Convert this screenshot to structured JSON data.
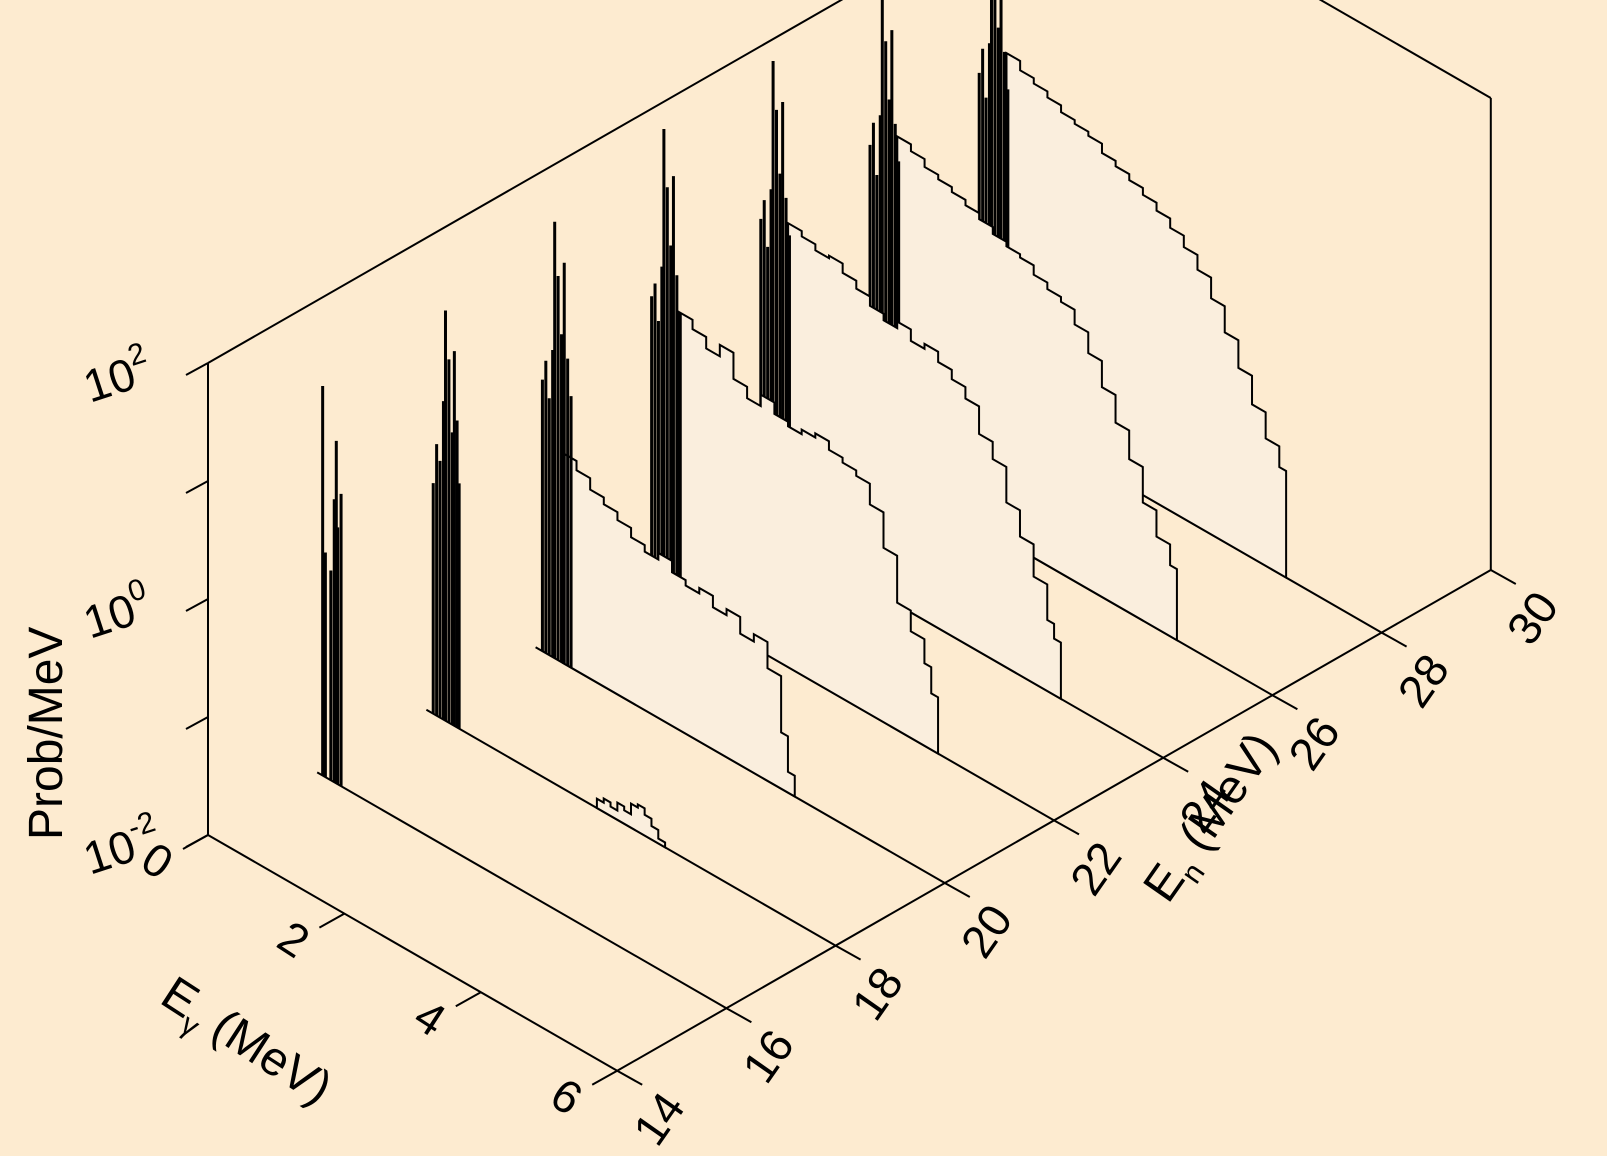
{
  "chart_data": {
    "type": "area",
    "projection": "3d-waterfall",
    "background_color": "#fdebd0",
    "slice_fill_color": "#faeedd",
    "line_color": "#000000",
    "axes": {
      "x": {
        "label_main": "E",
        "label_sub": "γ",
        "label_rest": " (MeV)",
        "range": [
          0,
          6
        ],
        "ticks": [
          "0",
          "2",
          "4",
          "6"
        ]
      },
      "y": {
        "label_main": "E",
        "label_sub": "n",
        "label_rest": " (MeV)",
        "range": [
          14,
          30
        ],
        "ticks": [
          "14",
          "16",
          "18",
          "20",
          "22",
          "24",
          "26",
          "28",
          "30"
        ]
      },
      "z": {
        "label": "Prob/MeV",
        "scale": "log",
        "range": [
          0.01,
          100
        ],
        "ticks": [
          {
            "base": "10",
            "exp": "-2"
          },
          {
            "base": "10",
            "exp": "0"
          },
          {
            "base": "10",
            "exp": "2"
          }
        ]
      }
    },
    "series": [
      {
        "en": 16,
        "lines": [
          [
            0.08,
            20
          ],
          [
            0.12,
            0.8
          ],
          [
            0.2,
            0.6
          ],
          [
            0.25,
            2.5
          ],
          [
            0.28,
            8
          ],
          [
            0.3,
            1.5
          ],
          [
            0.35,
            3
          ]
        ],
        "cont": []
      },
      {
        "en": 18,
        "lines": [
          [
            0.1,
            0.9
          ],
          [
            0.15,
            2
          ],
          [
            0.2,
            1.5
          ],
          [
            0.25,
            5
          ],
          [
            0.28,
            30
          ],
          [
            0.33,
            12
          ],
          [
            0.38,
            3
          ],
          [
            0.41,
            15
          ],
          [
            0.45,
            4
          ],
          [
            0.48,
            1.2
          ]
        ],
        "cont": [
          [
            2.5,
            0.012
          ],
          [
            2.6,
            0.013
          ],
          [
            2.7,
            0.012
          ],
          [
            2.8,
            0.014
          ],
          [
            2.9,
            0.013
          ],
          [
            3.0,
            0.016
          ],
          [
            3.1,
            0.017
          ],
          [
            3.2,
            0.015
          ],
          [
            3.3,
            0.013
          ],
          [
            3.4,
            0.011
          ]
        ]
      },
      {
        "en": 20,
        "lines": [
          [
            0.1,
            2
          ],
          [
            0.15,
            3
          ],
          [
            0.2,
            1.5
          ],
          [
            0.25,
            4
          ],
          [
            0.28,
            50
          ],
          [
            0.33,
            18
          ],
          [
            0.38,
            6
          ],
          [
            0.42,
            25
          ],
          [
            0.47,
            4
          ],
          [
            0.52,
            2
          ]
        ],
        "cont": [
          [
            0.4,
            0.6
          ],
          [
            0.6,
            0.5
          ],
          [
            0.8,
            0.4
          ],
          [
            1.0,
            0.35
          ],
          [
            1.2,
            0.3
          ],
          [
            1.4,
            0.25
          ],
          [
            1.6,
            0.22
          ],
          [
            1.8,
            0.25
          ],
          [
            2.0,
            0.2
          ],
          [
            2.2,
            0.18
          ],
          [
            2.4,
            0.2
          ],
          [
            2.6,
            0.16
          ],
          [
            2.8,
            0.18
          ],
          [
            3.0,
            0.13
          ],
          [
            3.2,
            0.15
          ],
          [
            3.4,
            0.09
          ],
          [
            3.6,
            0.03
          ],
          [
            3.7,
            0.015
          ]
        ]
      },
      {
        "en": 22,
        "lines": [
          [
            0.1,
            3
          ],
          [
            0.15,
            4
          ],
          [
            0.2,
            2
          ],
          [
            0.25,
            6
          ],
          [
            0.28,
            90
          ],
          [
            0.33,
            30
          ],
          [
            0.38,
            10
          ],
          [
            0.42,
            40
          ],
          [
            0.47,
            6
          ],
          [
            0.52,
            3
          ]
        ],
        "cont": [
          [
            0.5,
            3
          ],
          [
            0.7,
            2.5
          ],
          [
            0.9,
            2
          ],
          [
            1.1,
            2.5
          ],
          [
            1.3,
            1.5
          ],
          [
            1.5,
            1.2
          ],
          [
            1.7,
            1.5
          ],
          [
            1.9,
            1.2
          ],
          [
            2.1,
            1.1
          ],
          [
            2.3,
            1.2
          ],
          [
            2.5,
            1.3
          ],
          [
            2.7,
            1.1
          ],
          [
            2.9,
            1
          ],
          [
            3.1,
            0.9
          ],
          [
            3.3,
            0.6
          ],
          [
            3.5,
            0.3
          ],
          [
            3.7,
            0.12
          ],
          [
            3.9,
            0.08
          ],
          [
            4.1,
            0.05
          ],
          [
            4.2,
            0.03
          ]
        ]
      },
      {
        "en": 24,
        "lines": [
          [
            0.1,
            4
          ],
          [
            0.15,
            6
          ],
          [
            0.2,
            2.5
          ],
          [
            0.25,
            8
          ],
          [
            0.28,
            100
          ],
          [
            0.33,
            40
          ],
          [
            0.38,
            12
          ],
          [
            0.42,
            50
          ],
          [
            0.47,
            8
          ],
          [
            0.52,
            4
          ]
        ],
        "cont": [
          [
            0.5,
            5
          ],
          [
            0.7,
            4.5
          ],
          [
            0.9,
            4
          ],
          [
            1.1,
            4.2
          ],
          [
            1.3,
            3.5
          ],
          [
            1.5,
            3
          ],
          [
            1.7,
            2.5
          ],
          [
            1.9,
            2.2
          ],
          [
            2.1,
            2.5
          ],
          [
            2.3,
            2
          ],
          [
            2.5,
            2.2
          ],
          [
            2.7,
            1.8
          ],
          [
            2.9,
            1.5
          ],
          [
            3.1,
            1.2
          ],
          [
            3.3,
            0.7
          ],
          [
            3.5,
            0.5
          ],
          [
            3.7,
            0.25
          ],
          [
            3.9,
            0.15
          ],
          [
            4.1,
            0.08
          ],
          [
            4.3,
            0.04
          ],
          [
            4.4,
            0.03
          ]
        ]
      },
      {
        "en": 26,
        "lines": [
          [
            0.1,
            5
          ],
          [
            0.15,
            8
          ],
          [
            0.2,
            3
          ],
          [
            0.25,
            10
          ],
          [
            0.28,
            110
          ],
          [
            0.33,
            45
          ],
          [
            0.38,
            15
          ],
          [
            0.42,
            60
          ],
          [
            0.47,
            10
          ],
          [
            0.52,
            5
          ]
        ],
        "cont": [
          [
            0.5,
            8
          ],
          [
            0.7,
            7
          ],
          [
            0.9,
            6
          ],
          [
            1.1,
            5.5
          ],
          [
            1.3,
            5
          ],
          [
            1.5,
            4.5
          ],
          [
            1.7,
            4
          ],
          [
            1.9,
            3.5
          ],
          [
            2.1,
            3.2
          ],
          [
            2.3,
            3
          ],
          [
            2.5,
            2.5
          ],
          [
            2.7,
            2.2
          ],
          [
            2.9,
            2
          ],
          [
            3.1,
            1.5
          ],
          [
            3.3,
            1
          ],
          [
            3.5,
            0.6
          ],
          [
            3.7,
            0.35
          ],
          [
            3.9,
            0.2
          ],
          [
            4.1,
            0.1
          ],
          [
            4.3,
            0.06
          ],
          [
            4.5,
            0.04
          ]
        ]
      },
      {
        "en": 28,
        "lines": [
          [
            0.1,
            6
          ],
          [
            0.15,
            10
          ],
          [
            0.2,
            4
          ],
          [
            0.25,
            12
          ],
          [
            0.28,
            120
          ],
          [
            0.33,
            50
          ],
          [
            0.38,
            18
          ],
          [
            0.42,
            70
          ],
          [
            0.47,
            12
          ],
          [
            0.52,
            6
          ]
        ],
        "cont": [
          [
            0.5,
            12
          ],
          [
            0.7,
            10
          ],
          [
            0.9,
            9
          ],
          [
            1.1,
            8
          ],
          [
            1.3,
            7
          ],
          [
            1.5,
            6.5
          ],
          [
            1.7,
            6
          ],
          [
            1.9,
            5
          ],
          [
            2.1,
            4.5
          ],
          [
            2.3,
            4
          ],
          [
            2.5,
            3.5
          ],
          [
            2.7,
            3
          ],
          [
            2.9,
            2.5
          ],
          [
            3.1,
            2
          ],
          [
            3.3,
            1.5
          ],
          [
            3.5,
            1
          ],
          [
            3.7,
            0.6
          ],
          [
            3.9,
            0.35
          ],
          [
            4.1,
            0.2
          ],
          [
            4.3,
            0.12
          ],
          [
            4.5,
            0.08
          ]
        ]
      }
    ]
  }
}
